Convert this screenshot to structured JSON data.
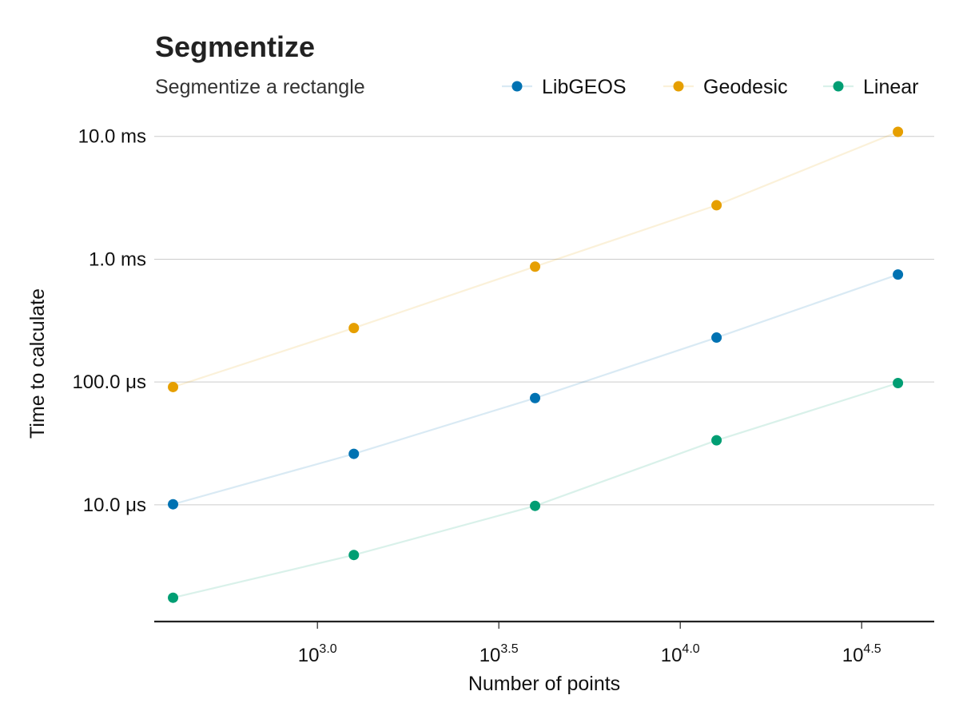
{
  "chart_data": {
    "type": "scatter",
    "title": "Segmentize",
    "subtitle": "Segmentize a rectangle",
    "xlabel": "Number of points",
    "ylabel": "Time to calculate",
    "x_scale": "log10",
    "y_scale": "log10",
    "x_ticks": [
      {
        "value": 1000,
        "base": "10",
        "exponent": "3.0"
      },
      {
        "value": 3162,
        "base": "10",
        "exponent": "3.5"
      },
      {
        "value": 10000,
        "base": "10",
        "exponent": "4.0"
      },
      {
        "value": 31623,
        "base": "10",
        "exponent": "4.5"
      }
    ],
    "y_ticks": [
      {
        "value": 10,
        "label": "10.0 μs"
      },
      {
        "value": 100,
        "label": "100.0 μs"
      },
      {
        "value": 1000,
        "label": "1.0 ms"
      },
      {
        "value": 10000,
        "label": "10.0 ms"
      }
    ],
    "y_unit": "μs",
    "xlim": [
      355,
      50119
    ],
    "ylim": [
      1.12,
      15850
    ],
    "legend_position": "top-right",
    "grid": "horizontal",
    "x": [
      400,
      1260,
      3980,
      12590,
      39810
    ],
    "series": [
      {
        "name": "LibGEOS",
        "color": "#0072B2",
        "values": [
          10.1,
          26,
          74,
          230,
          750
        ]
      },
      {
        "name": "Geodesic",
        "color": "#E69F00",
        "values": [
          91,
          275,
          870,
          2750,
          10900
        ]
      },
      {
        "name": "Linear",
        "color": "#009E73",
        "values": [
          1.75,
          3.9,
          9.8,
          33.5,
          98
        ]
      }
    ]
  }
}
